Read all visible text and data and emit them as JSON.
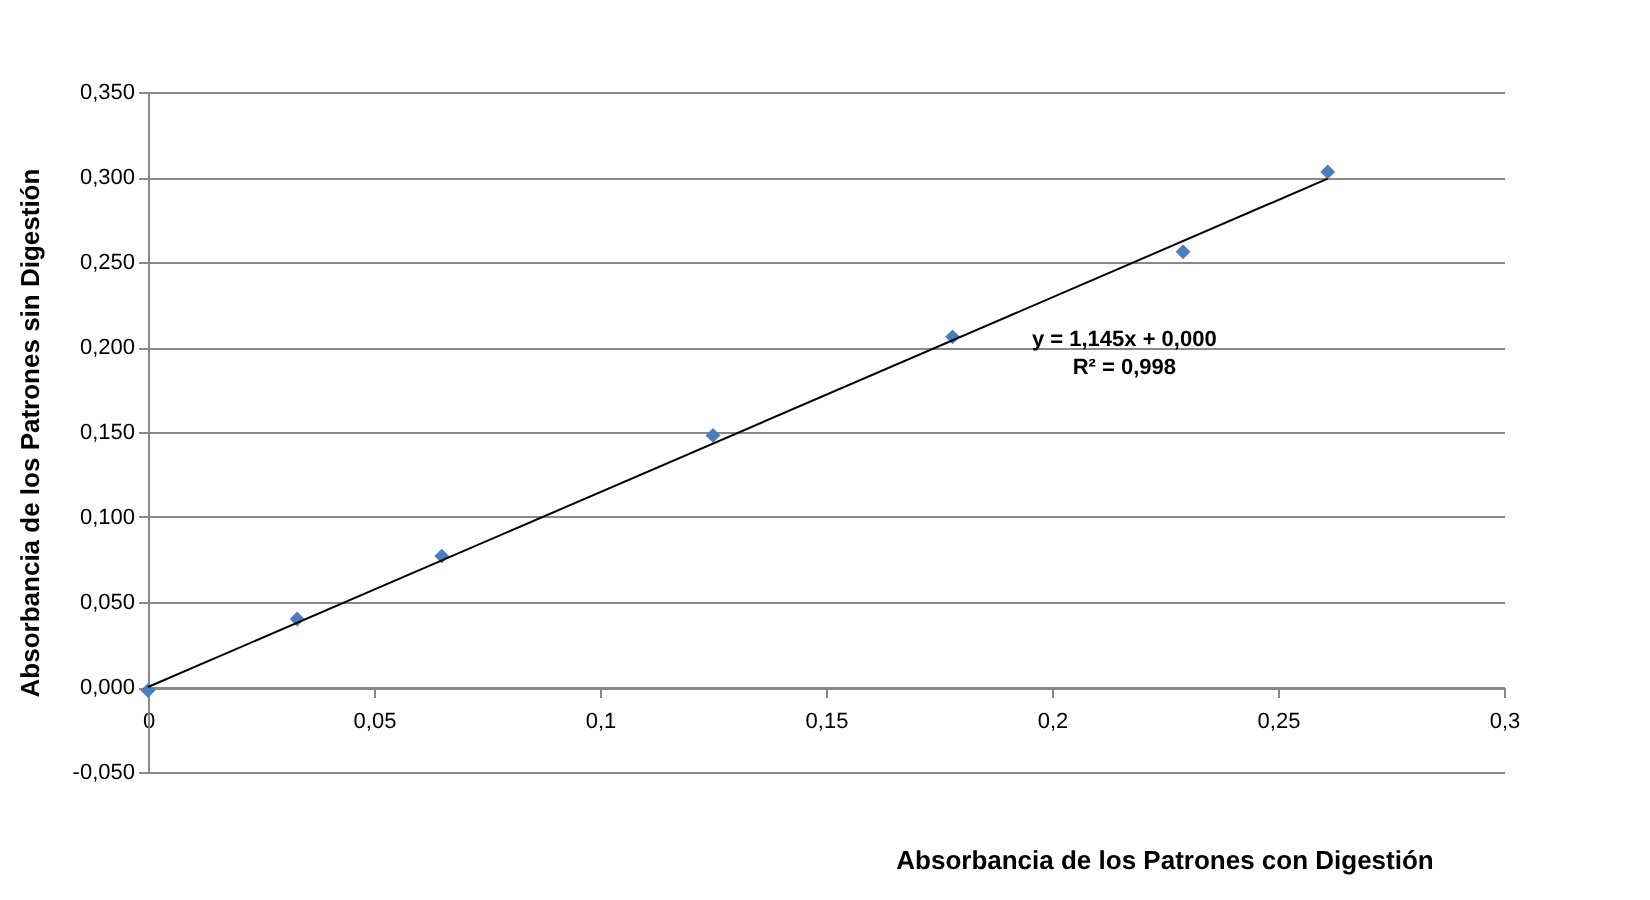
{
  "chart_data": {
    "type": "scatter",
    "xlabel": "Absorbancia de los Patrones con Digestión",
    "ylabel": "Absorbancia de los Patrones sin Digestión",
    "series": [
      {
        "color": "#4a7ebb",
        "marker": "diamond",
        "x": [
          0,
          0.033,
          0.065,
          0.125,
          0.178,
          0.229,
          0.261
        ],
        "values": [
          -0.002,
          0.04,
          0.077,
          0.148,
          0.206,
          0.256,
          0.303
        ]
      },
      {
        "type": "line",
        "color": "#000000",
        "x": [
          0,
          0.261
        ],
        "values": [
          0,
          0.299
        ]
      }
    ],
    "annotations": [
      "y = 1,145x + 0,000",
      "R² = 0,998"
    ],
    "xlim": [
      0,
      0.3
    ],
    "ylim": [
      -0.05,
      0.35
    ],
    "xticks": [
      {
        "value": 0,
        "label": "0"
      },
      {
        "value": 0.05,
        "label": "0,05"
      },
      {
        "value": 0.1,
        "label": "0,1"
      },
      {
        "value": 0.15,
        "label": "0,15"
      },
      {
        "value": 0.2,
        "label": "0,2"
      },
      {
        "value": 0.25,
        "label": "0,25"
      },
      {
        "value": 0.3,
        "label": "0,3"
      }
    ],
    "yticks": [
      {
        "value": -0.05,
        "label": "-0,050"
      },
      {
        "value": 0,
        "label": "0,000"
      },
      {
        "value": 0.05,
        "label": "0,050"
      },
      {
        "value": 0.1,
        "label": "0,100"
      },
      {
        "value": 0.15,
        "label": "0,150"
      },
      {
        "value": 0.2,
        "label": "0,200"
      },
      {
        "value": 0.25,
        "label": "0,250"
      },
      {
        "value": 0.3,
        "label": "0,300"
      },
      {
        "value": 0.35,
        "label": "0,350"
      }
    ],
    "grid": "y"
  }
}
